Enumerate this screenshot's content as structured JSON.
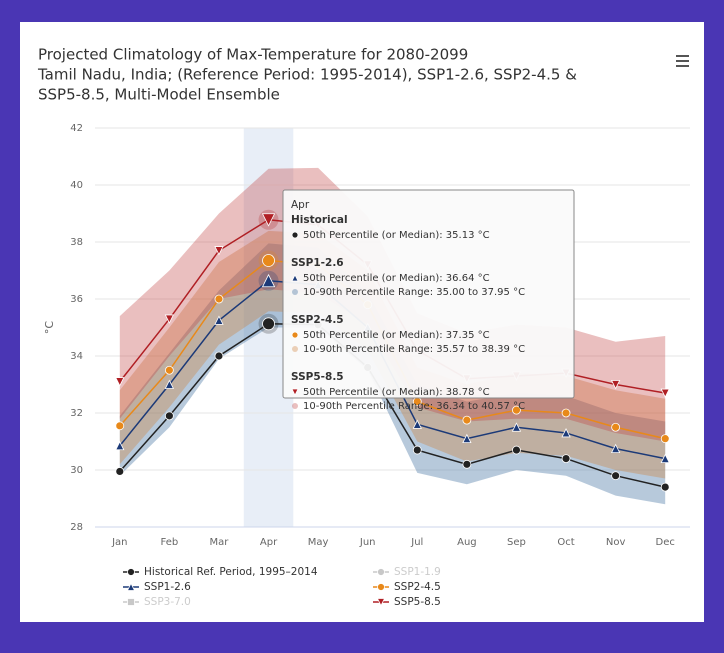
{
  "chart_data": {
    "type": "line",
    "title": [
      "Projected Climatology of Max-Temperature for 2080-2099",
      "Tamil Nadu, India; (Reference Period: 1995-2014), SSP1-2.6, SSP2-4.5 &",
      "SSP5-8.5, Multi-Model Ensemble"
    ],
    "y_label": "°C",
    "categories": [
      "Jan",
      "Feb",
      "Mar",
      "Apr",
      "May",
      "Jun",
      "Jul",
      "Aug",
      "Sep",
      "Oct",
      "Nov",
      "Dec"
    ],
    "ylim": [
      28,
      42
    ],
    "yticks": [
      28,
      30,
      32,
      34,
      36,
      38,
      40,
      42
    ],
    "grid": true,
    "highlight_category": 3,
    "series": [
      {
        "name": "Historical Ref. Period, 1995–2014",
        "color": "#222222",
        "marker": "circle",
        "visible": true,
        "values": [
          29.95,
          31.9,
          34.0,
          35.13,
          35.1,
          33.6,
          30.7,
          30.2,
          30.7,
          30.4,
          29.8,
          29.4
        ]
      },
      {
        "name": "SSP1-1.9",
        "color": "#c8c8c8",
        "marker": "circle",
        "visible": false
      },
      {
        "name": "SSP1-2.6",
        "color": "#1c3a78",
        "marker": "triangle",
        "visible": true,
        "band_color": "rgba(95,135,175,0.45)",
        "values": [
          30.85,
          33.0,
          35.25,
          36.64,
          36.5,
          35.0,
          31.6,
          31.1,
          31.5,
          31.3,
          30.75,
          30.4
        ],
        "range_low": [
          29.8,
          31.5,
          33.9,
          35.0,
          35.0,
          33.5,
          29.9,
          29.5,
          30.0,
          29.8,
          29.1,
          28.8
        ],
        "range_high": [
          31.9,
          34.1,
          36.3,
          37.95,
          37.8,
          36.2,
          33.0,
          32.4,
          32.7,
          32.6,
          32.0,
          31.7
        ]
      },
      {
        "name": "SSP2-4.5",
        "color": "#e8891a",
        "marker": "circle",
        "visible": true,
        "band_color": "rgba(205,125,55,0.35)",
        "values": [
          31.55,
          33.5,
          36.0,
          37.35,
          37.2,
          35.8,
          32.4,
          31.75,
          32.1,
          32.0,
          31.5,
          31.1
        ],
        "range_low": [
          30.2,
          32.2,
          34.4,
          35.57,
          35.5,
          34.2,
          31.0,
          30.3,
          30.6,
          30.5,
          30.0,
          29.7
        ],
        "range_high": [
          32.8,
          35.0,
          37.3,
          38.39,
          38.3,
          37.0,
          33.6,
          33.0,
          33.4,
          33.3,
          32.8,
          32.5
        ]
      },
      {
        "name": "SSP3-7.0",
        "color": "#c8c8c8",
        "marker": "square",
        "visible": false
      },
      {
        "name": "SSP5-8.5",
        "color": "#b01f24",
        "marker": "triangle-down",
        "visible": true,
        "band_color": "rgba(190,60,60,0.33)",
        "values": [
          33.1,
          35.3,
          37.7,
          38.78,
          38.6,
          37.2,
          34.2,
          33.2,
          33.3,
          33.4,
          33.0,
          32.7
        ],
        "range_low": [
          31.8,
          34.0,
          36.0,
          36.34,
          36.2,
          35.1,
          32.2,
          31.7,
          31.8,
          31.8,
          31.3,
          31.0
        ],
        "range_high": [
          35.4,
          37.0,
          39.0,
          40.57,
          40.6,
          38.9,
          35.5,
          34.8,
          35.1,
          35.0,
          34.5,
          34.7
        ]
      }
    ],
    "tooltip": {
      "title": "Apr",
      "groups": [
        {
          "name": "Historical",
          "lines": [
            "50th Percentile (or Median): 35.13 °C"
          ]
        },
        {
          "name": "SSP1-2.6",
          "lines": [
            "50th Percentile (or Median): 36.64 °C",
            "10-90th Percentile Range: 35.00 to 37.95 °C"
          ]
        },
        {
          "name": "SSP2-4.5",
          "lines": [
            "50th Percentile (or Median): 37.35 °C",
            "10-90th Percentile Range: 35.57 to 38.39 °C"
          ]
        },
        {
          "name": "SSP5-8.5",
          "lines": [
            "50th Percentile (or Median): 38.78 °C",
            "10-90th Percentile Range: 36.34 to 40.57 °C"
          ]
        }
      ]
    }
  }
}
